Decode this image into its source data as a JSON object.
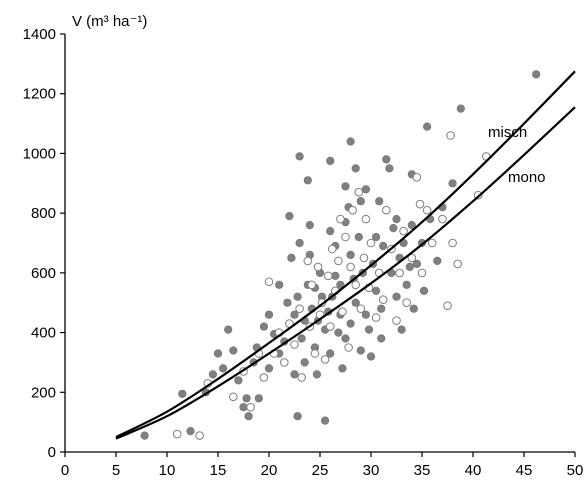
{
  "chart_data": {
    "type": "scatter",
    "ylabel": "V (m³ ha⁻¹)",
    "xlim": [
      0,
      50
    ],
    "ylim": [
      0,
      1400
    ],
    "xticks": [
      "0",
      "5",
      "10",
      "15",
      "20",
      "25",
      "30",
      "35",
      "40",
      "45",
      "50"
    ],
    "yticks": [
      "0",
      "200",
      "400",
      "600",
      "800",
      "1000",
      "1200",
      "1400"
    ],
    "grid": false,
    "colors": {
      "filled": "#808080",
      "open_fill": "#ffffff",
      "open_edge": "#7f7f7f",
      "curve": "#000000"
    },
    "curves": [
      {
        "name": "misch",
        "x": [
          5,
          10,
          15,
          20,
          25,
          30,
          35,
          40,
          45,
          50
        ],
        "y": [
          50,
          135,
          245,
          365,
          490,
          625,
          770,
          930,
          1100,
          1275
        ]
      },
      {
        "name": "mono",
        "x": [
          5,
          10,
          15,
          20,
          25,
          30,
          35,
          40,
          45,
          50
        ],
        "y": [
          45,
          120,
          220,
          330,
          445,
          565,
          695,
          840,
          995,
          1155
        ]
      }
    ],
    "series": [
      {
        "style": "filled",
        "points": [
          [
            7.8,
            55
          ],
          [
            11.5,
            195
          ],
          [
            12.3,
            70
          ],
          [
            13.8,
            200
          ],
          [
            14.5,
            260
          ],
          [
            15,
            330
          ],
          [
            15.5,
            280
          ],
          [
            16,
            410
          ],
          [
            16.5,
            340
          ],
          [
            17,
            240
          ],
          [
            17.5,
            150
          ],
          [
            17.8,
            180
          ],
          [
            18,
            120
          ],
          [
            18.5,
            300
          ],
          [
            18.8,
            350
          ],
          [
            19,
            180
          ],
          [
            19.5,
            420
          ],
          [
            20,
            460
          ],
          [
            20,
            280
          ],
          [
            20.5,
            395
          ],
          [
            21,
            330
          ],
          [
            21,
            560
          ],
          [
            21.5,
            370
          ],
          [
            21.8,
            500
          ],
          [
            22,
            790
          ],
          [
            22.2,
            650
          ],
          [
            22.5,
            460
          ],
          [
            22.5,
            260
          ],
          [
            22.8,
            520
          ],
          [
            22.8,
            120
          ],
          [
            23,
            990
          ],
          [
            23,
            700
          ],
          [
            23.2,
            380
          ],
          [
            23.5,
            440
          ],
          [
            23.5,
            300
          ],
          [
            23.8,
            560
          ],
          [
            23.8,
            910
          ],
          [
            24,
            760
          ],
          [
            24,
            660
          ],
          [
            24.2,
            480
          ],
          [
            24.5,
            350
          ],
          [
            24.5,
            550
          ],
          [
            24.7,
            260
          ],
          [
            24.8,
            440
          ],
          [
            25,
            600
          ],
          [
            25.2,
            520
          ],
          [
            25.5,
            410
          ],
          [
            25.5,
            105
          ],
          [
            25.8,
            470
          ],
          [
            26,
            975
          ],
          [
            26,
            740
          ],
          [
            26,
            330
          ],
          [
            26.2,
            520
          ],
          [
            26.5,
            590
          ],
          [
            26.5,
            690
          ],
          [
            26.8,
            400
          ],
          [
            27,
            560
          ],
          [
            27,
            460
          ],
          [
            27.2,
            280
          ],
          [
            27.5,
            890
          ],
          [
            27.5,
            770
          ],
          [
            27.5,
            380
          ],
          [
            27.8,
            820
          ],
          [
            28,
            1040
          ],
          [
            28,
            660
          ],
          [
            28,
            430
          ],
          [
            28.3,
            580
          ],
          [
            28.5,
            950
          ],
          [
            28.5,
            500
          ],
          [
            28.8,
            720
          ],
          [
            29,
            340
          ],
          [
            29,
            840
          ],
          [
            29.2,
            600
          ],
          [
            29.5,
            460
          ],
          [
            29.5,
            880
          ],
          [
            29.8,
            410
          ],
          [
            30,
            320
          ],
          [
            30.2,
            630
          ],
          [
            30.5,
            720
          ],
          [
            30.5,
            540
          ],
          [
            30.8,
            840
          ],
          [
            31,
            480
          ],
          [
            31,
            380
          ],
          [
            31.2,
            690
          ],
          [
            31.5,
            980
          ],
          [
            31.8,
            950
          ],
          [
            32,
            600
          ],
          [
            32.2,
            750
          ],
          [
            32.5,
            780
          ],
          [
            32.5,
            520
          ],
          [
            32.8,
            650
          ],
          [
            33,
            410
          ],
          [
            33.2,
            700
          ],
          [
            33.5,
            560
          ],
          [
            33.8,
            620
          ],
          [
            34,
            930
          ],
          [
            34,
            760
          ],
          [
            34.2,
            480
          ],
          [
            34.5,
            630
          ],
          [
            35,
            700
          ],
          [
            35.2,
            540
          ],
          [
            35.5,
            1090
          ],
          [
            35.8,
            780
          ],
          [
            36.5,
            640
          ],
          [
            37,
            820
          ],
          [
            38,
            900
          ],
          [
            38.8,
            1150
          ],
          [
            46.2,
            1265
          ]
        ]
      },
      {
        "style": "open",
        "points": [
          [
            11,
            60
          ],
          [
            13.2,
            55
          ],
          [
            14,
            230
          ],
          [
            16.5,
            185
          ],
          [
            17.5,
            270
          ],
          [
            18.2,
            150
          ],
          [
            19,
            330
          ],
          [
            19.5,
            250
          ],
          [
            20,
            570
          ],
          [
            20.5,
            330
          ],
          [
            21,
            400
          ],
          [
            21.5,
            300
          ],
          [
            22,
            430
          ],
          [
            22.5,
            360
          ],
          [
            23,
            480
          ],
          [
            23.2,
            250
          ],
          [
            23.8,
            640
          ],
          [
            24,
            420
          ],
          [
            24.2,
            560
          ],
          [
            24.5,
            330
          ],
          [
            24.8,
            620
          ],
          [
            25,
            460
          ],
          [
            25.2,
            500
          ],
          [
            25.5,
            310
          ],
          [
            25.8,
            590
          ],
          [
            26,
            420
          ],
          [
            26.2,
            680
          ],
          [
            26.5,
            540
          ],
          [
            26.8,
            640
          ],
          [
            27,
            780
          ],
          [
            27.2,
            470
          ],
          [
            27.5,
            720
          ],
          [
            27.8,
            350
          ],
          [
            28,
            620
          ],
          [
            28.2,
            810
          ],
          [
            28.5,
            560
          ],
          [
            28.8,
            870
          ],
          [
            29,
            480
          ],
          [
            29.3,
            650
          ],
          [
            29.5,
            780
          ],
          [
            29.8,
            550
          ],
          [
            30,
            700
          ],
          [
            30.5,
            450
          ],
          [
            30.8,
            600
          ],
          [
            31.2,
            510
          ],
          [
            31.5,
            810
          ],
          [
            32,
            680
          ],
          [
            32.5,
            440
          ],
          [
            32.8,
            600
          ],
          [
            33.2,
            740
          ],
          [
            33.5,
            500
          ],
          [
            34,
            650
          ],
          [
            34.5,
            920
          ],
          [
            34.8,
            830
          ],
          [
            35,
            600
          ],
          [
            35.5,
            810
          ],
          [
            36,
            700
          ],
          [
            37,
            780
          ],
          [
            37.5,
            490
          ],
          [
            37.8,
            1060
          ],
          [
            38,
            700
          ],
          [
            38.5,
            630
          ],
          [
            40.5,
            860
          ],
          [
            41.3,
            990
          ]
        ]
      }
    ]
  }
}
